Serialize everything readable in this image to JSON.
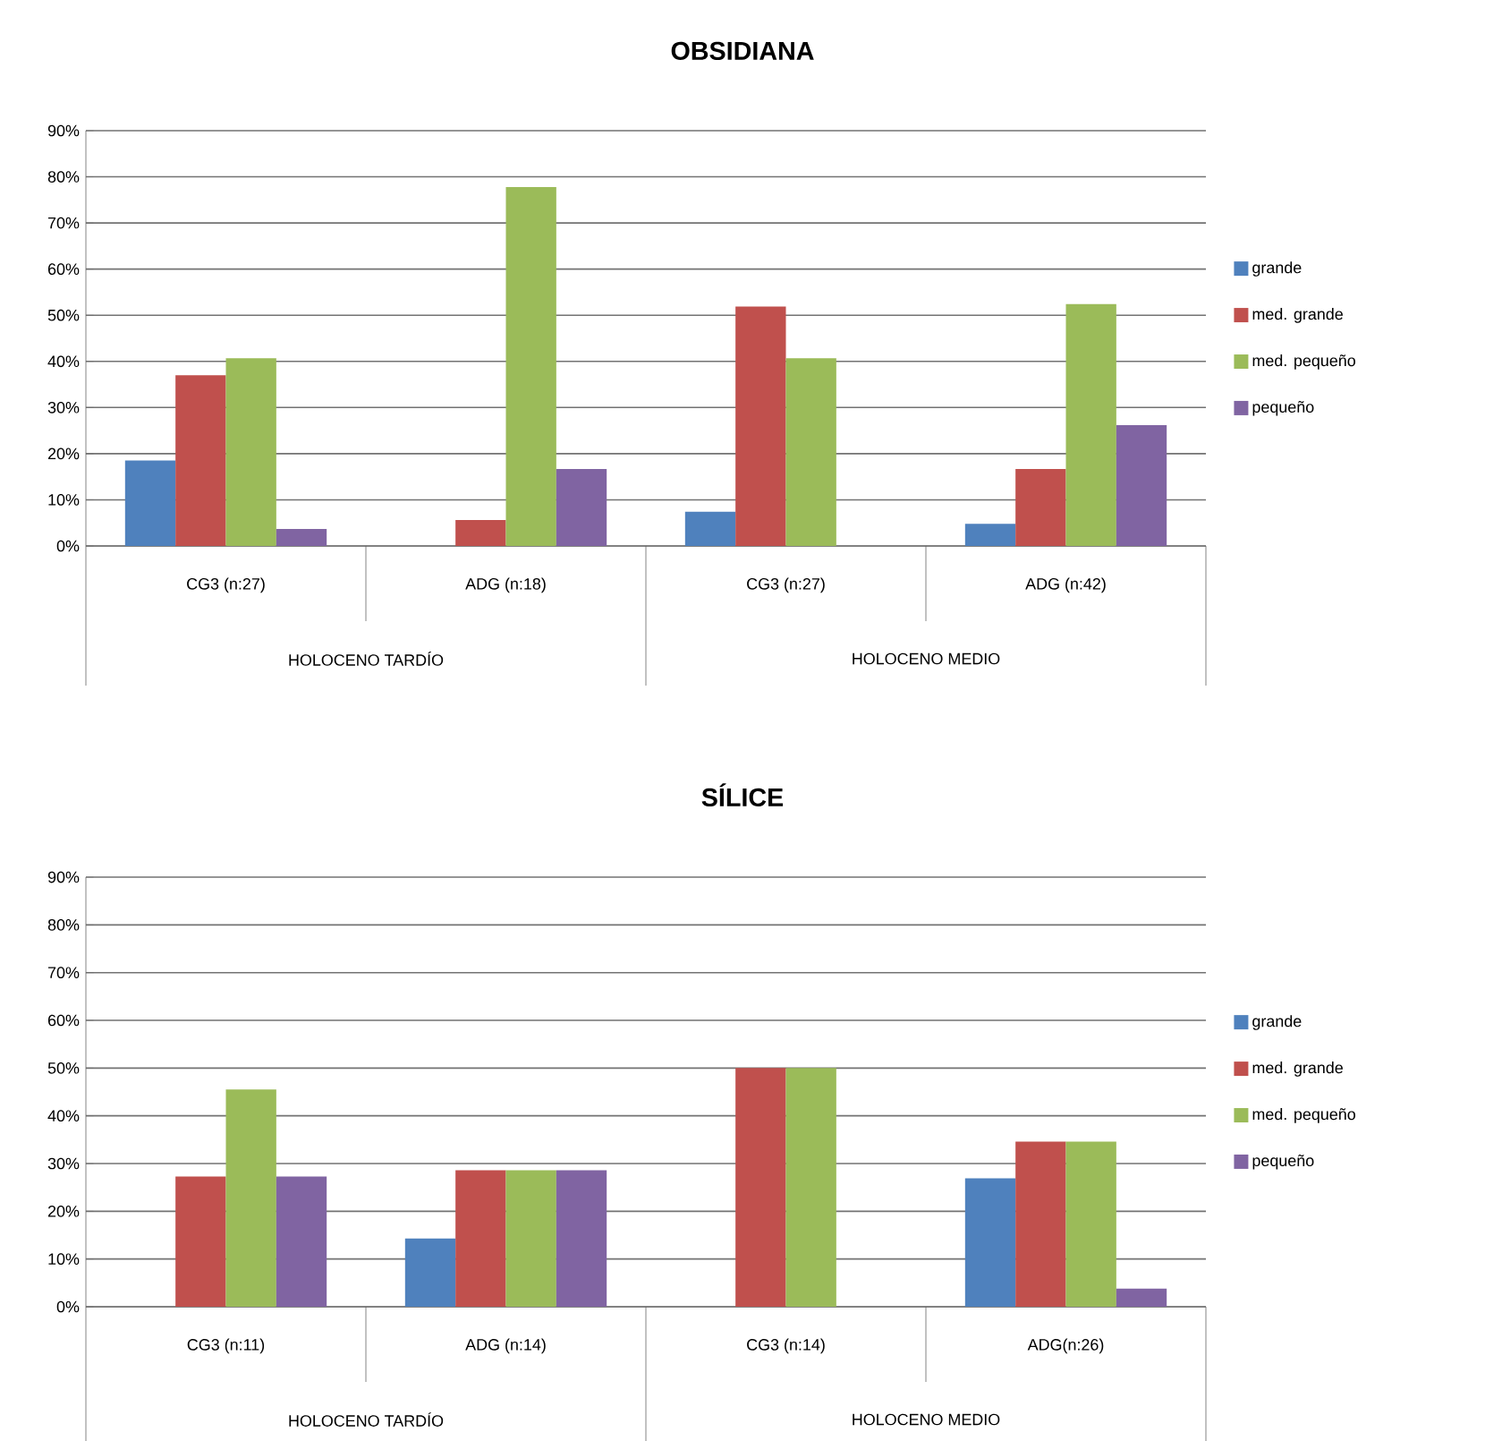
{
  "chart_data": [
    {
      "type": "bar",
      "title": "OBSIDIANA",
      "categories": [
        "CG3 (n:27)",
        "ADG (n:18)",
        "CG3 (n:27)",
        "ADG (n:42)"
      ],
      "annotations": [
        "HOLOCENO TARDÍO",
        "HOLOCENO MEDIO"
      ],
      "series": [
        {
          "name": "grande",
          "color": "#4f81bd",
          "values": [
            18.5,
            0,
            7.4,
            4.8
          ]
        },
        {
          "name": "med. grande",
          "color": "#c0504d",
          "values": [
            37,
            5.6,
            51.9,
            16.7
          ]
        },
        {
          "name": "med. pequeño",
          "color": "#9bbb59",
          "values": [
            40.7,
            77.8,
            40.7,
            52.4
          ]
        },
        {
          "name": "pequeño",
          "color": "#8064a2",
          "values": [
            3.7,
            16.7,
            0,
            26.2
          ]
        }
      ],
      "ylim": [
        0,
        90
      ],
      "yticks": [
        {
          "value": 0,
          "label": "0%"
        },
        {
          "value": 10,
          "label": "10%"
        },
        {
          "value": 20,
          "label": "20%"
        },
        {
          "value": 30,
          "label": "30%"
        },
        {
          "value": 40,
          "label": "40%"
        },
        {
          "value": 50,
          "label": "50%"
        },
        {
          "value": 60,
          "label": "60%"
        },
        {
          "value": 70,
          "label": "70%"
        },
        {
          "value": 80,
          "label": "80%"
        },
        {
          "value": 90,
          "label": "90%"
        }
      ],
      "grid": "y",
      "legend": "right"
    },
    {
      "type": "bar",
      "title": "SÍLICE",
      "categories": [
        "CG3 (n:11)",
        "ADG (n:14)",
        "CG3 (n:14)",
        "ADG(n:26)"
      ],
      "annotations": [
        "HOLOCENO TARDÍO",
        "HOLOCENO MEDIO"
      ],
      "series": [
        {
          "name": "grande",
          "color": "#4f81bd",
          "values": [
            0,
            14.3,
            0,
            26.9
          ]
        },
        {
          "name": "med. grande",
          "color": "#c0504d",
          "values": [
            27.3,
            28.6,
            50,
            34.6
          ]
        },
        {
          "name": "med. pequeño",
          "color": "#9bbb59",
          "values": [
            45.5,
            28.6,
            50,
            34.6
          ]
        },
        {
          "name": "pequeño",
          "color": "#8064a2",
          "values": [
            27.3,
            28.6,
            0,
            3.8
          ]
        }
      ],
      "ylim": [
        0,
        90
      ],
      "yticks": [
        {
          "value": 0,
          "label": "0%"
        },
        {
          "value": 10,
          "label": "10%"
        },
        {
          "value": 20,
          "label": "20%"
        },
        {
          "value": 30,
          "label": "30%"
        },
        {
          "value": 40,
          "label": "40%"
        },
        {
          "value": 50,
          "label": "50%"
        },
        {
          "value": 60,
          "label": "60%"
        },
        {
          "value": 70,
          "label": "70%"
        },
        {
          "value": 80,
          "label": "80%"
        },
        {
          "value": 90,
          "label": "90%"
        }
      ],
      "grid": "y",
      "legend": "right"
    }
  ]
}
